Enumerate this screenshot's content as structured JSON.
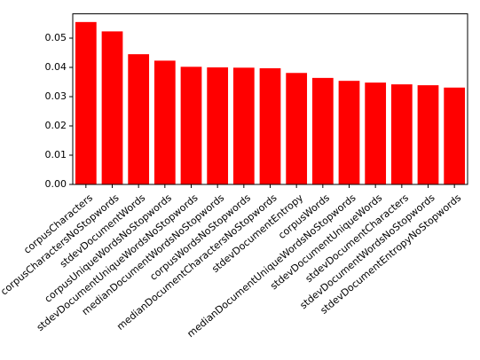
{
  "chart_data": {
    "type": "bar",
    "categories": [
      "corpusCharacters",
      "corpusCharactersNoStopwords",
      "stdevDocumentWords",
      "corpusUniqueWordsNoStopwords",
      "stdevDocumentUniqueWordsNoStopwords",
      "medianDocumentWordsNoStopwords",
      "corpusWordsNoStopwords",
      "medianDocumentCharactersNoStopwords",
      "stdevDocumentEntropy",
      "corpusWords",
      "medianDocumentUniqueWordsNoStopwords",
      "stdevDocumentUniqueWords",
      "stdevDocumentCharacters",
      "stdevDocumentWordsNoStopwords",
      "stdevDocumentEntropyNoStopwords"
    ],
    "values": [
      0.0555,
      0.0523,
      0.0445,
      0.0423,
      0.0402,
      0.04,
      0.0399,
      0.0397,
      0.0381,
      0.0364,
      0.0354,
      0.0348,
      0.0342,
      0.0339,
      0.0331
    ],
    "color": "#ff0000",
    "ylim": [
      0,
      0.0583
    ],
    "yticks": [
      {
        "value": 0,
        "label": "0.00"
      },
      {
        "value": 0.01,
        "label": "0.01"
      },
      {
        "value": 0.02,
        "label": "0.02"
      },
      {
        "value": 0.03,
        "label": "0.03"
      },
      {
        "value": 0.04,
        "label": "0.04"
      },
      {
        "value": 0.05,
        "label": "0.05"
      }
    ]
  }
}
